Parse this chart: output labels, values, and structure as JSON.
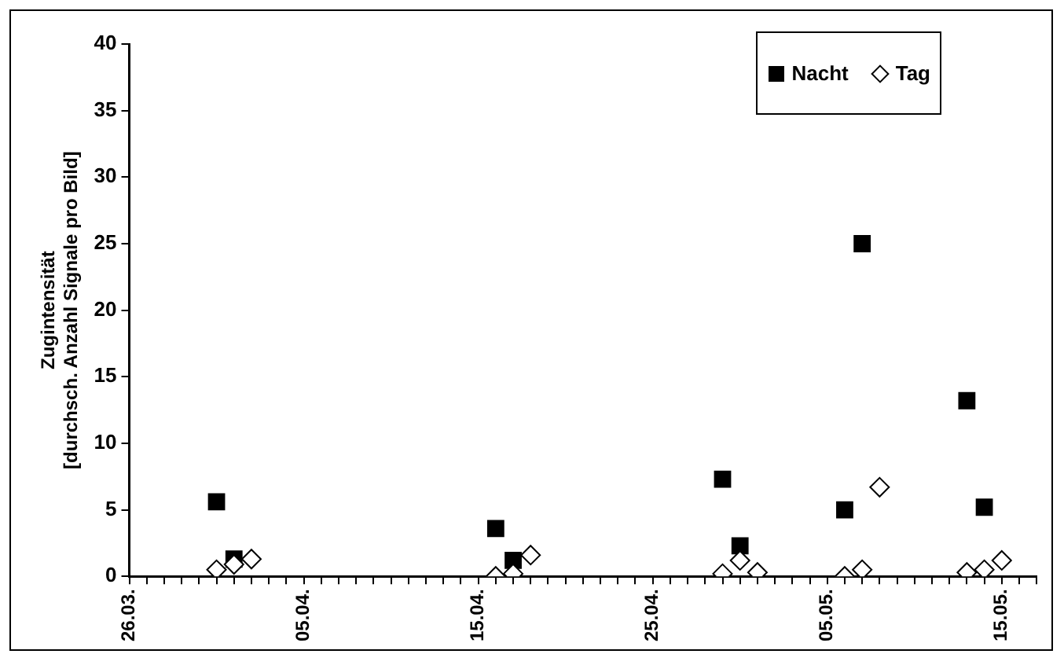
{
  "chart_data": {
    "type": "scatter",
    "ylabel": "Zugintensität\n[durchsch. Anzahl Signale pro Bild]",
    "xlim": [
      "--03-26",
      "--05-17"
    ],
    "xticks": [
      {
        "value": "--03-26",
        "label": "26.03."
      },
      {
        "value": "--03-27",
        "label": null
      },
      {
        "value": "--03-28",
        "label": null
      },
      {
        "value": "--03-29",
        "label": null
      },
      {
        "value": "--03-30",
        "label": null
      },
      {
        "value": "--03-31",
        "label": null
      },
      {
        "value": "--04-01",
        "label": null
      },
      {
        "value": "--04-02",
        "label": null
      },
      {
        "value": "--04-03",
        "label": null
      },
      {
        "value": "--04-04",
        "label": null
      },
      {
        "value": "--04-05",
        "label": "05.04."
      },
      {
        "value": "--04-06",
        "label": null
      },
      {
        "value": "--04-07",
        "label": null
      },
      {
        "value": "--04-08",
        "label": null
      },
      {
        "value": "--04-09",
        "label": null
      },
      {
        "value": "--04-10",
        "label": null
      },
      {
        "value": "--04-11",
        "label": null
      },
      {
        "value": "--04-12",
        "label": null
      },
      {
        "value": "--04-13",
        "label": null
      },
      {
        "value": "--04-14",
        "label": null
      },
      {
        "value": "--04-15",
        "label": "15.04."
      },
      {
        "value": "--04-16",
        "label": null
      },
      {
        "value": "--04-17",
        "label": null
      },
      {
        "value": "--04-18",
        "label": null
      },
      {
        "value": "--04-19",
        "label": null
      },
      {
        "value": "--04-20",
        "label": null
      },
      {
        "value": "--04-21",
        "label": null
      },
      {
        "value": "--04-22",
        "label": null
      },
      {
        "value": "--04-23",
        "label": null
      },
      {
        "value": "--04-24",
        "label": null
      },
      {
        "value": "--04-25",
        "label": "25.04."
      },
      {
        "value": "--04-26",
        "label": null
      },
      {
        "value": "--04-27",
        "label": null
      },
      {
        "value": "--04-28",
        "label": null
      },
      {
        "value": "--04-29",
        "label": null
      },
      {
        "value": "--04-30",
        "label": null
      },
      {
        "value": "--05-01",
        "label": null
      },
      {
        "value": "--05-02",
        "label": null
      },
      {
        "value": "--05-03",
        "label": null
      },
      {
        "value": "--05-04",
        "label": null
      },
      {
        "value": "--05-05",
        "label": "05.05."
      },
      {
        "value": "--05-06",
        "label": null
      },
      {
        "value": "--05-07",
        "label": null
      },
      {
        "value": "--05-08",
        "label": null
      },
      {
        "value": "--05-09",
        "label": null
      },
      {
        "value": "--05-10",
        "label": null
      },
      {
        "value": "--05-11",
        "label": null
      },
      {
        "value": "--05-12",
        "label": null
      },
      {
        "value": "--05-13",
        "label": null
      },
      {
        "value": "--05-14",
        "label": null
      },
      {
        "value": "--05-15",
        "label": "15.05."
      },
      {
        "value": "--05-16",
        "label": null
      },
      {
        "value": "--05-17",
        "label": null
      }
    ],
    "ylim": [
      0,
      40
    ],
    "yticks": [
      0,
      5,
      10,
      15,
      20,
      25,
      30,
      35,
      40
    ],
    "grid": false,
    "legend": "top right",
    "series": [
      {
        "name": "Nacht",
        "color": "#000000",
        "marker": "square",
        "x": [
          "--03-31",
          "--04-01",
          "--04-16",
          "--04-17",
          "--04-29",
          "--04-30",
          "--05-06",
          "--05-07",
          "--05-13",
          "--05-14"
        ],
        "values": [
          5.6,
          1.3,
          3.6,
          1.2,
          7.3,
          2.3,
          5.0,
          25.0,
          13.2,
          5.2
        ]
      },
      {
        "name": "Tag",
        "color": "#000000",
        "marker": "diamond",
        "x": [
          "--03-31",
          "--04-01",
          "--04-02",
          "--04-16",
          "--04-17",
          "--04-18",
          "--04-29",
          "--04-30",
          "--05-01",
          "--05-06",
          "--05-07",
          "--05-08",
          "--05-13",
          "--05-14",
          "--05-15"
        ],
        "values": [
          0.5,
          0.9,
          1.3,
          0,
          0.2,
          1.6,
          0.2,
          1.2,
          0.3,
          0,
          0.5,
          6.7,
          0.3,
          0.5,
          1.2
        ]
      }
    ]
  }
}
